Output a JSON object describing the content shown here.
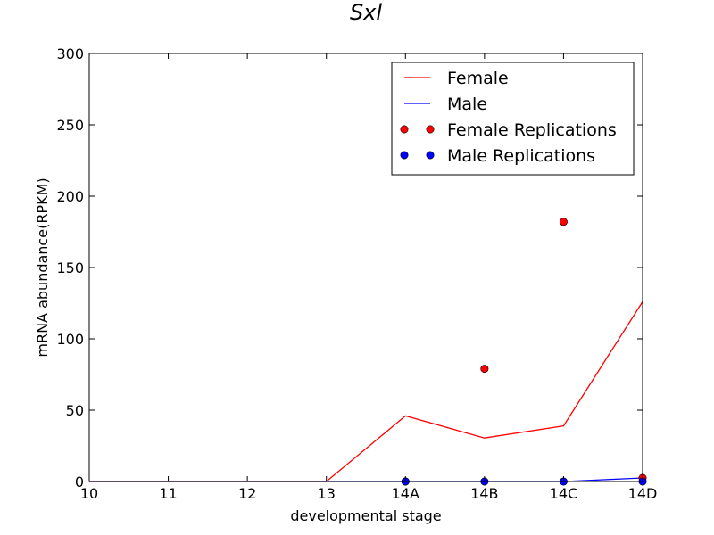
{
  "chart_data": {
    "type": "line",
    "title": "Sxl",
    "xlabel": "developmental stage",
    "ylabel": "mRNA abundance(RPKM)",
    "categories": [
      "10",
      "11",
      "12",
      "13",
      "14A",
      "14B",
      "14C",
      "14D"
    ],
    "ylim": [
      0,
      300
    ],
    "yticks": [
      "0",
      "50",
      "100",
      "150",
      "200",
      "250",
      "300"
    ],
    "grid": false,
    "legend_position": "top-right",
    "series": [
      {
        "name": "Female",
        "kind": "line",
        "color": "#ff0000",
        "values": [
          0,
          0,
          0,
          0,
          46,
          30.5,
          39,
          126
        ]
      },
      {
        "name": "Male",
        "kind": "line",
        "color": "#0000ff",
        "values": [
          0,
          0,
          0,
          0,
          0,
          0,
          0,
          2.5
        ]
      },
      {
        "name": "Female Replications",
        "kind": "scatter",
        "color": "#ff0000",
        "points": [
          {
            "x": "14A",
            "y": 0
          },
          {
            "x": "14B",
            "y": 79
          },
          {
            "x": "14C",
            "y": 182
          },
          {
            "x": "14D",
            "y": 2.5
          }
        ]
      },
      {
        "name": "Male Replications",
        "kind": "scatter",
        "color": "#0000ff",
        "points": [
          {
            "x": "14A",
            "y": 0
          },
          {
            "x": "14B",
            "y": 0
          },
          {
            "x": "14C",
            "y": 0
          },
          {
            "x": "14D",
            "y": 0
          }
        ]
      }
    ]
  }
}
